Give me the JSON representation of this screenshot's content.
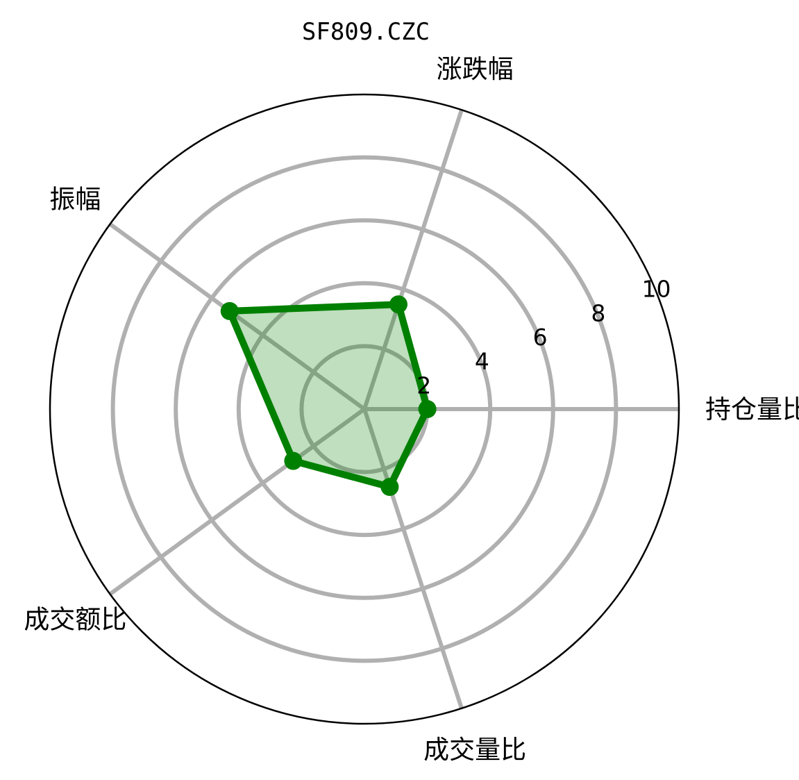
{
  "chart_data": {
    "type": "radar",
    "title": "SF809.CZC",
    "categories": [
      "持仓量比",
      "涨跌幅",
      "振幅",
      "成交额比",
      "成交量比"
    ],
    "series": [
      {
        "values": [
          2.0,
          3.5,
          5.3,
          2.8,
          2.6
        ]
      }
    ],
    "rlim": [
      0,
      10
    ],
    "rticks": [
      2,
      4,
      6,
      8,
      10
    ],
    "rtick_labels": [
      "2",
      "4",
      "6",
      "8",
      "10"
    ],
    "grid": true,
    "colors": {
      "line": "#008000",
      "fill": "#008000",
      "grid": "#b0b0b0",
      "outline": "#000000"
    }
  }
}
